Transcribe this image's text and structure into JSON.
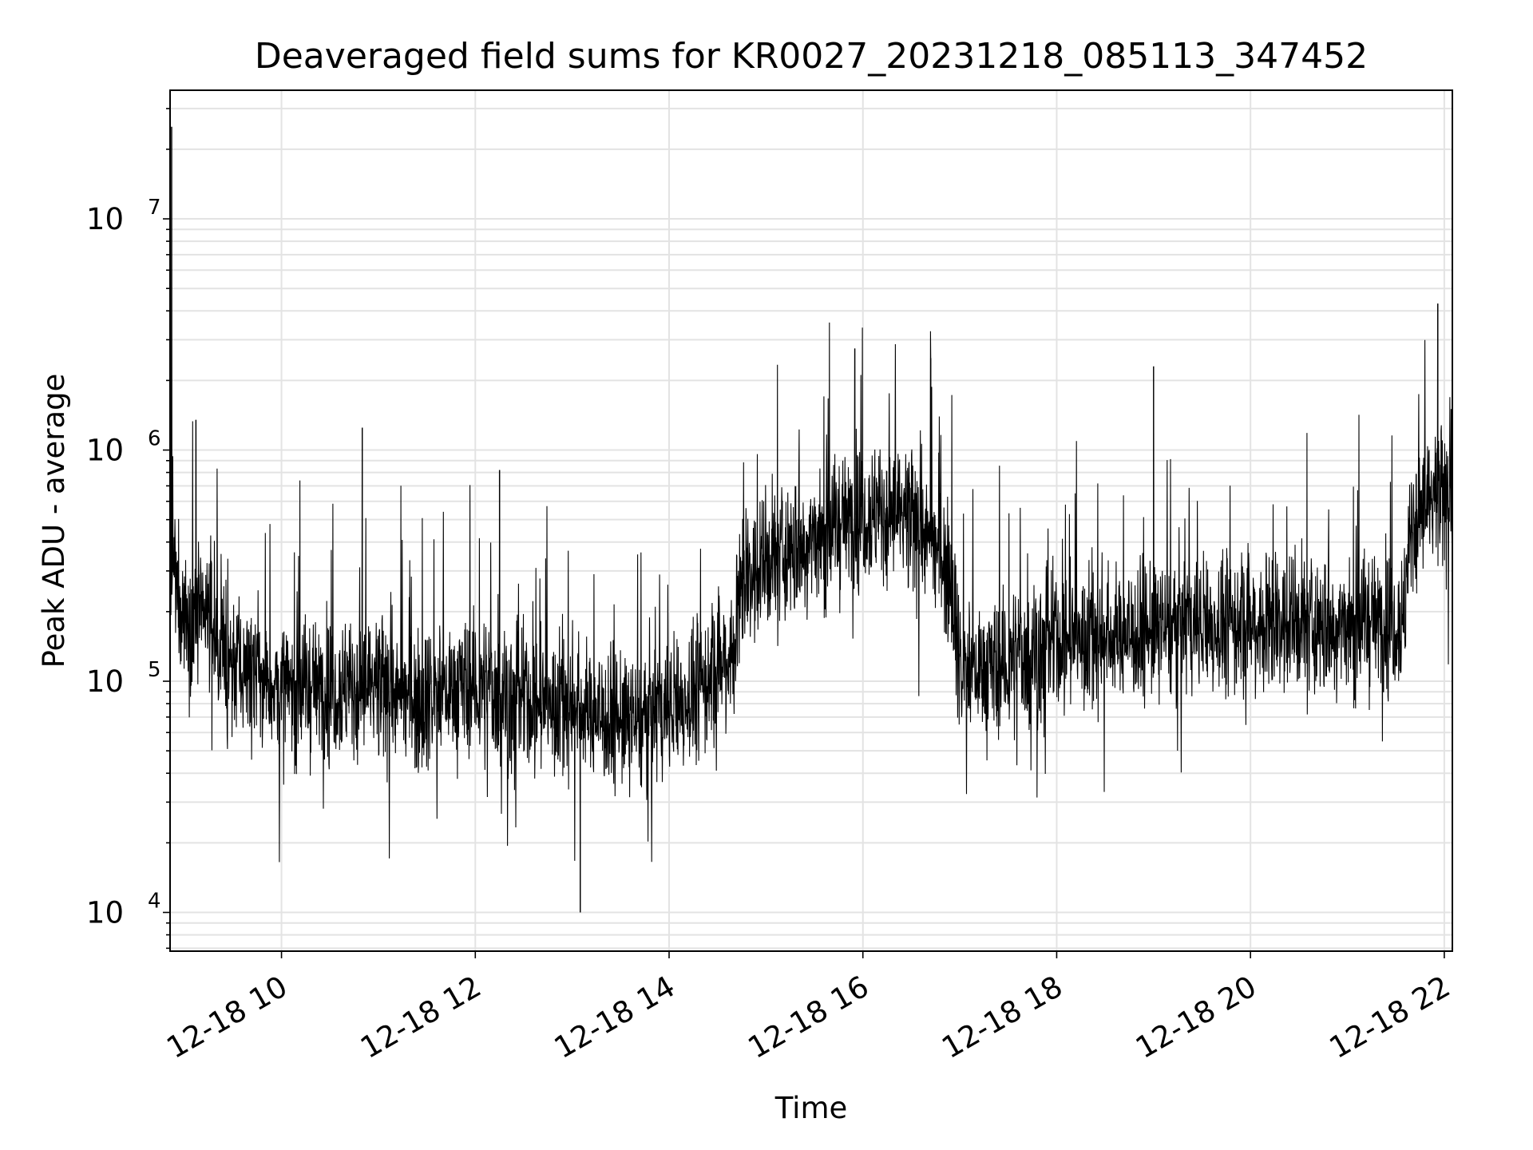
{
  "chart_data": {
    "type": "line",
    "title": "Deaveraged field sums for KR0027_20231218_085113_347452",
    "xlabel": "Time",
    "ylabel": "Peak ADU - average",
    "y_scale": "log",
    "grid": true,
    "legend": "none",
    "line_color": "#000000",
    "grid_color": "#e3e3e3",
    "xlim": [
      "12-18 08:51",
      "12-18 22:05"
    ],
    "ylim": [
      6800,
      36000000
    ],
    "x_ticks": [
      {
        "label": "12-18 10",
        "time": "12-18 10:00"
      },
      {
        "label": "12-18 12",
        "time": "12-18 12:00"
      },
      {
        "label": "12-18 14",
        "time": "12-18 14:00"
      },
      {
        "label": "12-18 16",
        "time": "12-18 16:00"
      },
      {
        "label": "12-18 18",
        "time": "12-18 18:00"
      },
      {
        "label": "12-18 20",
        "time": "12-18 20:00"
      },
      {
        "label": "12-18 22",
        "time": "12-18 22:00"
      }
    ],
    "y_ticks": [
      {
        "base": "10",
        "exp": "4",
        "value": 10000
      },
      {
        "base": "10",
        "exp": "5",
        "value": 100000
      },
      {
        "base": "10",
        "exp": "6",
        "value": 1000000
      },
      {
        "base": "10",
        "exp": "7",
        "value": 10000000
      }
    ],
    "series": [
      {
        "x": [
          "12-18 08:51",
          "12-18 09:00",
          "12-18 09:15",
          "12-18 09:30",
          "12-18 09:45",
          "12-18 10:00",
          "12-18 10:20",
          "12-18 10:40",
          "12-18 11:00",
          "12-18 11:20",
          "12-18 11:40",
          "12-18 12:00",
          "12-18 12:20",
          "12-18 12:40",
          "12-18 13:00",
          "12-18 13:20",
          "12-18 13:40",
          "12-18 14:00",
          "12-18 14:20",
          "12-18 14:40",
          "12-18 14:45",
          "12-18 15:00",
          "12-18 15:20",
          "12-18 15:40",
          "12-18 16:00",
          "12-18 16:20",
          "12-18 16:40",
          "12-18 16:55",
          "12-18 17:00",
          "12-18 17:20",
          "12-18 17:40",
          "12-18 18:00",
          "12-18 18:20",
          "12-18 18:40",
          "12-18 19:00",
          "12-18 19:20",
          "12-18 19:40",
          "12-18 20:00",
          "12-18 20:20",
          "12-18 20:40",
          "12-18 21:00",
          "12-18 21:20",
          "12-18 21:35",
          "12-18 21:40",
          "12-18 21:55",
          "12-18 22:05"
        ],
        "y": [
          300000,
          200000,
          180000,
          120000,
          110000,
          90000,
          95000,
          95000,
          90000,
          85000,
          90000,
          95000,
          85000,
          80000,
          80000,
          70000,
          65000,
          75000,
          95000,
          140000,
          270000,
          320000,
          380000,
          450000,
          550000,
          520000,
          420000,
          300000,
          115000,
          110000,
          130000,
          150000,
          155000,
          160000,
          165000,
          170000,
          175000,
          180000,
          180000,
          170000,
          175000,
          185000,
          190000,
          500000,
          580000,
          620000
        ],
        "spikes": [
          {
            "x": "12-18 08:52",
            "y": 25000000
          },
          {
            "x": "12-18 09:07",
            "y": 1350000
          },
          {
            "x": "12-18 10:50",
            "y": 1250000
          },
          {
            "x": "12-18 12:15",
            "y": 820000
          },
          {
            "x": "12-18 13:05",
            "y": 10000
          },
          {
            "x": "12-18 15:55",
            "y": 2750000
          },
          {
            "x": "12-18 16:42",
            "y": 2500000
          },
          {
            "x": "12-18 19:00",
            "y": 2300000
          },
          {
            "x": "12-18 21:56",
            "y": 4300000
          }
        ]
      }
    ]
  }
}
